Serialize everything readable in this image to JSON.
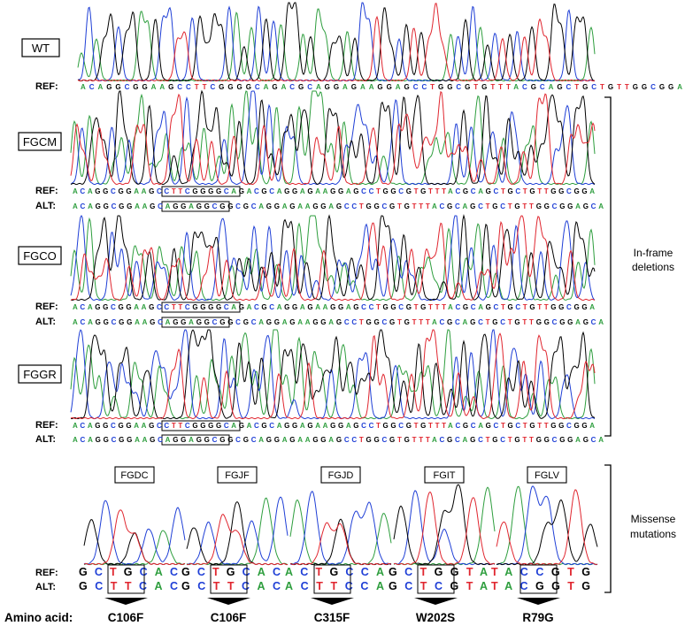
{
  "colors": {
    "A": "#2e9e3e",
    "C": "#1f3fd6",
    "G": "#000000",
    "T": "#e0262f"
  },
  "labels": {
    "ref": "REF:",
    "alt": "ALT:",
    "amino": "Amino acid:"
  },
  "brackets": {
    "inframe_line1": "In-frame",
    "inframe_line2": "deletions",
    "missense_line1": "Missense",
    "missense_line2": "mutations"
  },
  "panels": [
    {
      "tag": "WT",
      "ref": "ACAGGCGGAAGCCTTCGGGGCAGACGCAGGAGAAGGAGCCTGGCGTGTTTACGCAGCTGCTGTTGGCGGA",
      "alt": ""
    },
    {
      "tag": "FGCM",
      "ref": "ACAGGCGGAAGCCTTCGGGGCAGACGCAGGAGAAGGAGCCTGGCGTGTTTACGCAGCTGCTGTTGGCGGA",
      "alt": "ACAGGCGGAAGCAGGAGGCGGCGCAGGAGAAGGAGCCTGGCGTGTTTACGCAGCTGCTGTTGGCGGAGCA"
    },
    {
      "tag": "FGCO",
      "ref": "ACAGGCGGAAGCCTTCGGGGCAGACGCAGGAGAAGGAGCCTGGCGTGTTTACGCAGCTGCTGTTGGCGGA",
      "alt": "ACAGGCGGAAGCAGGAGGCGGCGCAGGAGAAGGAGCCTGGCGTGTTTACGCAGCTGCTGTTGGCGGAGCA"
    },
    {
      "tag": "FGGR",
      "ref": "ACAGGCGGAAGCCTTCGGGGCAGACGCAGGAGAAGGAGCCTGGCGTGTTTACGCAGCTGCTGTTGGCGGA",
      "alt": "ACAGGCGGAAGCAGGAGGCGGCGCAGGAGAAGGAGCCTGGCGTGTTTACGCAGCTGCTGTTGGCGGAGCA"
    }
  ],
  "missense": [
    {
      "tag": "FGDC",
      "ref": "GCTGCAC",
      "alt": "GCTTCAC",
      "aa": "C106F"
    },
    {
      "tag": "FGJF",
      "ref": "GCTGCAC",
      "alt": "GCTTCAC",
      "aa": "C106F"
    },
    {
      "tag": "FGJD",
      "ref": "ACTGCCA",
      "alt": "ACTTCCA",
      "aa": "C315F"
    },
    {
      "tag": "FGIT",
      "ref": "GCTGGTA",
      "alt": "GCTCGTA",
      "aa": "W202S"
    },
    {
      "tag": "FGLV",
      "ref": "TACCGTG",
      "alt": "TACGGTG",
      "aa": "R79G"
    }
  ]
}
